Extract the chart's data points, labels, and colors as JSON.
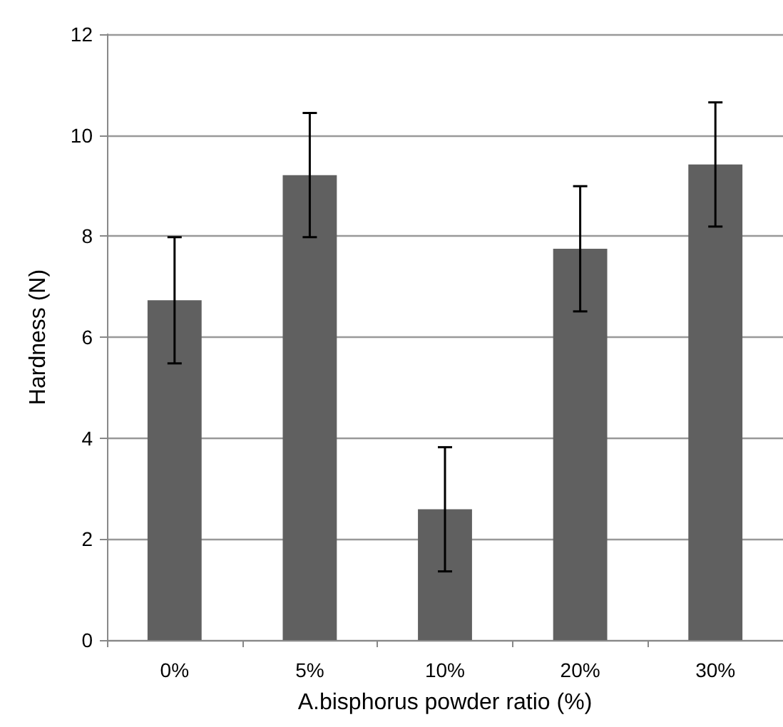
{
  "chart_data": {
    "type": "bar",
    "xlabel": "A.bisphorus powder ratio (%)",
    "ylabel": "Hardness (N)",
    "categories": [
      "0%",
      "5%",
      "10%",
      "20%",
      "30%"
    ],
    "values": [
      6.73,
      9.21,
      2.59,
      7.75,
      9.42
    ],
    "errors": [
      1.25,
      1.23,
      1.23,
      1.24,
      1.23
    ],
    "color": "#606060",
    "ylim": [
      0,
      12
    ],
    "yticks": [
      0,
      2,
      4,
      6,
      8,
      10,
      12
    ],
    "grid": "y"
  }
}
